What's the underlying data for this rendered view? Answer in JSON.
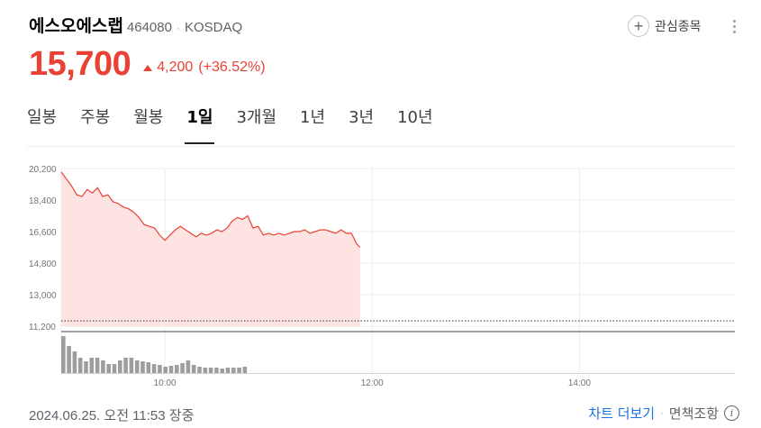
{
  "stock": {
    "name": "에스오에스랩",
    "code": "464080",
    "separator": "·",
    "exchange": "KOSDAQ"
  },
  "actions": {
    "watch_icon": "plus-icon",
    "watch_label": "관심종목",
    "more_icon": "more-vert-icon"
  },
  "price": {
    "current": "15,700",
    "change": "4,200",
    "change_pct": "(+36.52%)",
    "direction": "up",
    "color": "#e94235"
  },
  "tabs": [
    {
      "label": "일봉",
      "active": false
    },
    {
      "label": "주봉",
      "active": false
    },
    {
      "label": "월봉",
      "active": false
    },
    {
      "label": "1일",
      "active": true
    },
    {
      "label": "3개월",
      "active": false
    },
    {
      "label": "1년",
      "active": false
    },
    {
      "label": "3년",
      "active": false
    },
    {
      "label": "10년",
      "active": false
    }
  ],
  "chart_data": {
    "type": "area",
    "y_ticks": [
      "20,200",
      "18,400",
      "16,600",
      "14,800",
      "13,000",
      "11,200"
    ],
    "y_tick_values": [
      20200,
      18400,
      16600,
      14800,
      13000,
      11200
    ],
    "ylim": [
      11200,
      20200
    ],
    "x_ticks": [
      "10:00",
      "12:00",
      "14:00"
    ],
    "x_tick_values": [
      "10:00",
      "12:00",
      "14:00"
    ],
    "xlim": [
      "09:00",
      "15:30"
    ],
    "previous_close": 11500,
    "line_color": "#e94235",
    "fill_color": "#fde3e1",
    "volume_color": "#9e9e9e",
    "grid": true,
    "series": [
      {
        "x": [
          "09:00",
          "09:03",
          "09:06",
          "09:09",
          "09:12",
          "09:15",
          "09:18",
          "09:21",
          "09:24",
          "09:27",
          "09:30",
          "09:33",
          "09:36",
          "09:39",
          "09:42",
          "09:45",
          "09:48",
          "09:51",
          "09:54",
          "09:57",
          "10:00",
          "10:03",
          "10:06",
          "10:09",
          "10:12",
          "10:15",
          "10:18",
          "10:21",
          "10:24",
          "10:27",
          "10:30",
          "10:33",
          "10:36",
          "10:39",
          "10:42",
          "10:45",
          "10:48",
          "10:51",
          "10:54",
          "10:57",
          "11:00",
          "11:03",
          "11:06",
          "11:09",
          "11:12",
          "11:15",
          "11:18",
          "11:21",
          "11:24",
          "11:27",
          "11:30",
          "11:33",
          "11:36",
          "11:39",
          "11:42",
          "11:45",
          "11:48",
          "11:51",
          "11:53"
        ],
        "values": [
          20000,
          19600,
          19200,
          18700,
          18600,
          19000,
          18800,
          19100,
          18600,
          18700,
          18300,
          18200,
          18000,
          17900,
          17700,
          17400,
          17000,
          16900,
          16800,
          16400,
          16100,
          16400,
          16700,
          16900,
          16700,
          16500,
          16300,
          16500,
          16400,
          16500,
          16700,
          16600,
          16800,
          17200,
          17400,
          17300,
          17500,
          16800,
          16900,
          16400,
          16500,
          16400,
          16500,
          16400,
          16500,
          16600,
          16600,
          16700,
          16500,
          16600,
          16700,
          16700,
          16600,
          16500,
          16700,
          16500,
          16500,
          15900,
          15700
        ]
      }
    ],
    "volume": [
      82,
      60,
      48,
      34,
      26,
      34,
      34,
      28,
      20,
      20,
      28,
      34,
      34,
      28,
      26,
      24,
      20,
      18,
      14,
      16,
      18,
      22,
      28,
      18,
      14,
      12,
      12,
      12,
      10,
      12,
      12,
      12,
      14
    ]
  },
  "footer": {
    "timestamp": "2024.06.25. 오전 11:53 장중",
    "more_chart": "차트 더보기",
    "separator": "·",
    "disclaimer": "면책조항",
    "info_icon": "info-icon",
    "info_glyph": "i"
  }
}
